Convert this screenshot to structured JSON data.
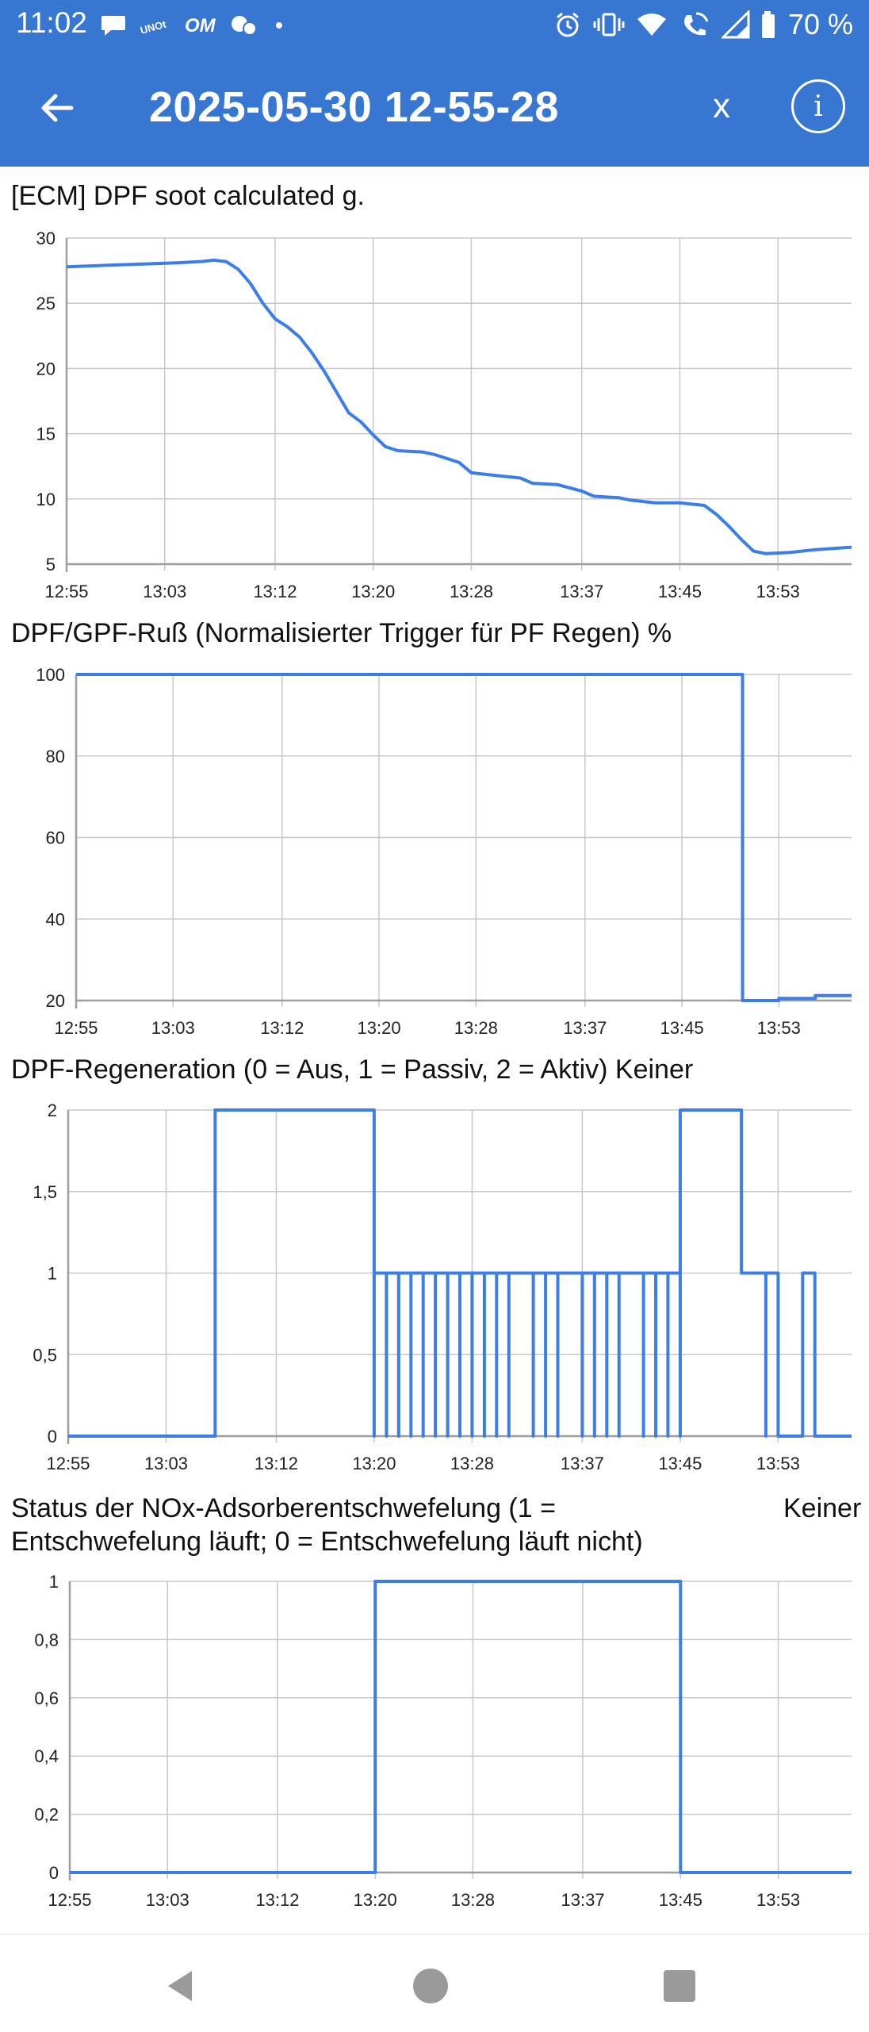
{
  "status_bar": {
    "time": "11:02",
    "notification_icons": [
      "chat-bubble-icon",
      "unot-app-icon",
      "om-app-icon",
      "social-app-icon",
      "dot-icon"
    ],
    "right_icons": [
      "alarm-icon",
      "vibrate-icon",
      "wifi-icon",
      "wifi-call-icon",
      "signal-icon",
      "battery-icon"
    ],
    "battery": "70 %"
  },
  "app_bar": {
    "title": "2025-05-30 12-55-28",
    "close_label": "x",
    "info_label": "i",
    "color": "#3777d2"
  },
  "charts": [
    {
      "title": "[ECM] DPF soot calculated  g.",
      "chart_data": {
        "type": "line",
        "y_ticks": [
          "30",
          "25",
          "20",
          "15",
          "10",
          "5"
        ],
        "x_ticks": [
          "12:55",
          "13:03",
          "13:12",
          "13:20",
          "13:28",
          "13:37",
          "13:45",
          "13:53"
        ],
        "ylim": [
          5,
          30
        ],
        "xlim": [
          "12:55",
          "13:59"
        ],
        "grid": true,
        "line_color": "#3b7de9",
        "points": [
          [
            "12:55",
            27.8
          ],
          [
            "12:58",
            27.9
          ],
          [
            "13:01",
            28.0
          ],
          [
            "13:04",
            28.1
          ],
          [
            "13:06",
            28.2
          ],
          [
            "13:07",
            28.3
          ],
          [
            "13:08",
            28.2
          ],
          [
            "13:09",
            27.6
          ],
          [
            "13:10",
            26.5
          ],
          [
            "13:11",
            25.0
          ],
          [
            "13:12",
            23.8
          ],
          [
            "13:13",
            23.2
          ],
          [
            "13:14",
            22.4
          ],
          [
            "13:15",
            21.2
          ],
          [
            "13:16",
            19.8
          ],
          [
            "13:17",
            18.2
          ],
          [
            "13:18",
            16.6
          ],
          [
            "13:19",
            15.9
          ],
          [
            "13:20",
            14.9
          ],
          [
            "13:21",
            14.0
          ],
          [
            "13:22",
            13.7
          ],
          [
            "13:24",
            13.6
          ],
          [
            "13:25",
            13.4
          ],
          [
            "13:26",
            13.1
          ],
          [
            "13:27",
            12.8
          ],
          [
            "13:28",
            12.0
          ],
          [
            "13:30",
            11.8
          ],
          [
            "13:32",
            11.6
          ],
          [
            "13:33",
            11.2
          ],
          [
            "13:35",
            11.1
          ],
          [
            "13:37",
            10.6
          ],
          [
            "13:38",
            10.2
          ],
          [
            "13:40",
            10.1
          ],
          [
            "13:41",
            9.9
          ],
          [
            "13:43",
            9.7
          ],
          [
            "13:45",
            9.7
          ],
          [
            "13:47",
            9.5
          ],
          [
            "13:48",
            8.8
          ],
          [
            "13:49",
            7.9
          ],
          [
            "13:50",
            6.9
          ],
          [
            "13:51",
            6.0
          ],
          [
            "13:52",
            5.8
          ],
          [
            "13:54",
            5.9
          ],
          [
            "13:56",
            6.1
          ],
          [
            "13:59",
            6.3
          ]
        ]
      }
    },
    {
      "title": "DPF/GPF-Ruß (Normalisierter Trigger für PF Regen)  %",
      "chart_data": {
        "type": "line",
        "y_ticks": [
          "100",
          "80",
          "60",
          "40",
          "20"
        ],
        "x_ticks": [
          "12:55",
          "13:03",
          "13:12",
          "13:20",
          "13:28",
          "13:37",
          "13:45",
          "13:53"
        ],
        "ylim": [
          20,
          100
        ],
        "xlim": [
          "12:55",
          "13:59"
        ],
        "grid": true,
        "line_color": "#3b7de9",
        "points": [
          [
            "12:55",
            100
          ],
          [
            "13:50",
            100
          ],
          [
            "13:50",
            20
          ],
          [
            "13:53",
            20
          ],
          [
            "13:53",
            20.5
          ],
          [
            "13:56",
            20.5
          ],
          [
            "13:56",
            21.2
          ],
          [
            "13:59",
            21.2
          ]
        ]
      }
    },
    {
      "title": "DPF-Regeneration (0 = Aus, 1 = Passiv, 2 = Aktiv)  Keiner",
      "chart_data": {
        "type": "line",
        "y_ticks": [
          "2",
          "1,5",
          "1",
          "0,5",
          "0"
        ],
        "x_ticks": [
          "12:55",
          "13:03",
          "13:12",
          "13:20",
          "13:28",
          "13:37",
          "13:45",
          "13:53"
        ],
        "ylim": [
          0,
          2
        ],
        "xlim": [
          "12:55",
          "13:59"
        ],
        "grid": true,
        "line_color": "#3b7de9",
        "points": [
          [
            "12:55",
            0
          ],
          [
            "13:07",
            0
          ],
          [
            "13:07",
            2
          ],
          [
            "13:20",
            2
          ],
          [
            "13:20",
            1
          ],
          [
            "13:20",
            0
          ],
          [
            "13:20",
            1
          ],
          [
            "13:21",
            1
          ],
          [
            "13:21",
            0
          ],
          [
            "13:21",
            1
          ],
          [
            "13:22",
            1
          ],
          [
            "13:22",
            0
          ],
          [
            "13:22",
            1
          ],
          [
            "13:23",
            1
          ],
          [
            "13:23",
            0
          ],
          [
            "13:23",
            1
          ],
          [
            "13:24",
            1
          ],
          [
            "13:24",
            0
          ],
          [
            "13:24",
            1
          ],
          [
            "13:25",
            1
          ],
          [
            "13:25",
            0
          ],
          [
            "13:25",
            1
          ],
          [
            "13:26",
            1
          ],
          [
            "13:26",
            0
          ],
          [
            "13:26",
            1
          ],
          [
            "13:27",
            1
          ],
          [
            "13:27",
            0
          ],
          [
            "13:27",
            1
          ],
          [
            "13:28",
            1
          ],
          [
            "13:28",
            0
          ],
          [
            "13:28",
            1
          ],
          [
            "13:29",
            1
          ],
          [
            "13:29",
            0
          ],
          [
            "13:29",
            1
          ],
          [
            "13:30",
            1
          ],
          [
            "13:30",
            0
          ],
          [
            "13:30",
            1
          ],
          [
            "13:31",
            1
          ],
          [
            "13:31",
            0
          ],
          [
            "13:31",
            1
          ],
          [
            "13:33",
            1
          ],
          [
            "13:33",
            0
          ],
          [
            "13:33",
            1
          ],
          [
            "13:34",
            1
          ],
          [
            "13:34",
            0
          ],
          [
            "13:34",
            1
          ],
          [
            "13:35",
            1
          ],
          [
            "13:35",
            0
          ],
          [
            "13:35",
            1
          ],
          [
            "13:37",
            1
          ],
          [
            "13:37",
            0
          ],
          [
            "13:37",
            1
          ],
          [
            "13:38",
            1
          ],
          [
            "13:38",
            0
          ],
          [
            "13:38",
            1
          ],
          [
            "13:39",
            1
          ],
          [
            "13:39",
            0
          ],
          [
            "13:39",
            1
          ],
          [
            "13:40",
            1
          ],
          [
            "13:40",
            0
          ],
          [
            "13:40",
            1
          ],
          [
            "13:42",
            1
          ],
          [
            "13:42",
            0
          ],
          [
            "13:42",
            1
          ],
          [
            "13:43",
            1
          ],
          [
            "13:43",
            0
          ],
          [
            "13:43",
            1
          ],
          [
            "13:44",
            1
          ],
          [
            "13:44",
            0
          ],
          [
            "13:44",
            1
          ],
          [
            "13:45",
            1
          ],
          [
            "13:45",
            0
          ],
          [
            "13:45",
            2
          ],
          [
            "13:50",
            2
          ],
          [
            "13:50",
            1
          ],
          [
            "13:52",
            1
          ],
          [
            "13:52",
            0
          ],
          [
            "13:52",
            1
          ],
          [
            "13:53",
            1
          ],
          [
            "13:53",
            0
          ],
          [
            "13:55",
            0
          ],
          [
            "13:55",
            1
          ],
          [
            "13:56",
            1
          ],
          [
            "13:56",
            0
          ],
          [
            "13:59",
            0
          ]
        ]
      }
    },
    {
      "title": "Status der NOx-Adsorberentschwefelung (1 = Entschwefelung läuft; 0 = Entschwefelung läuft nicht)",
      "unit": "Keiner",
      "chart_data": {
        "type": "line",
        "y_ticks": [
          "1",
          "0,8",
          "0,6",
          "0,4",
          "0,2",
          "0"
        ],
        "x_ticks": [
          "12:55",
          "13:03",
          "13:12",
          "13:20",
          "13:28",
          "13:37",
          "13:45",
          "13:53"
        ],
        "ylim": [
          0,
          1
        ],
        "xlim": [
          "12:55",
          "13:59"
        ],
        "grid": true,
        "line_color": "#3b7de9",
        "points": [
          [
            "12:55",
            0
          ],
          [
            "13:20",
            0
          ],
          [
            "13:20",
            1
          ],
          [
            "13:45",
            1
          ],
          [
            "13:45",
            0
          ],
          [
            "13:59",
            0
          ]
        ]
      }
    }
  ],
  "nav_bar": {
    "buttons": [
      "back-triangle-icon",
      "home-circle-icon",
      "recents-square-icon"
    ]
  }
}
